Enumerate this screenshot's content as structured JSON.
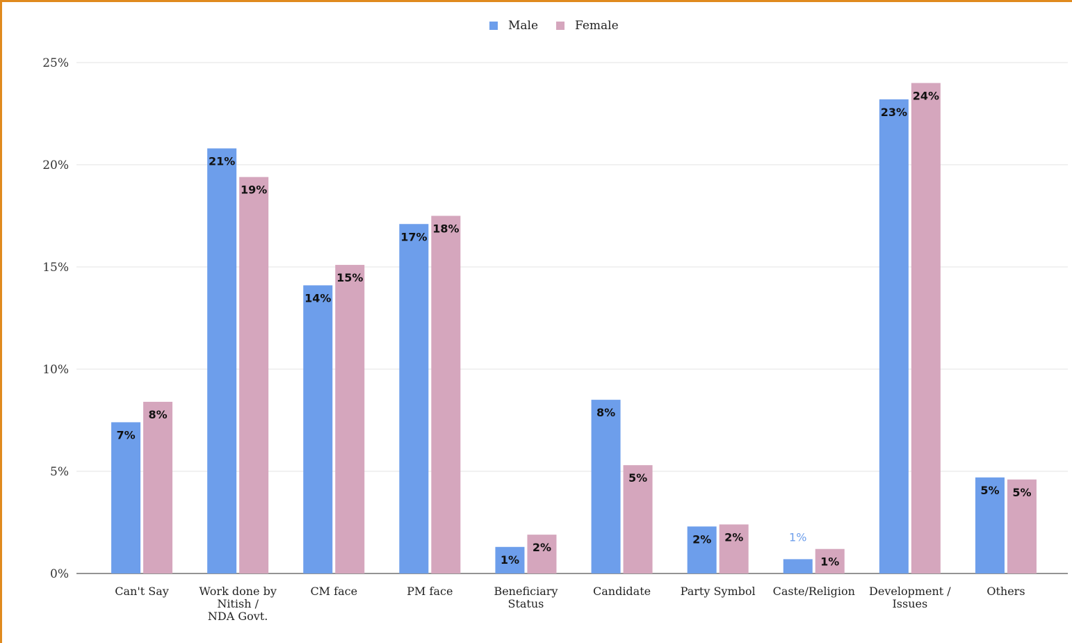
{
  "chart_data": {
    "type": "bar",
    "title": "",
    "xlabel": "",
    "ylabel": "",
    "ylim": [
      0,
      25
    ],
    "y_ticks": [
      "0%",
      "5%",
      "10%",
      "15%",
      "20%",
      "25%"
    ],
    "grid": true,
    "legend_position": "top-center",
    "categories": [
      [
        "Can't Say"
      ],
      [
        "Work done by",
        "Nitish /",
        "NDA Govt."
      ],
      [
        "CM face"
      ],
      [
        "PM face"
      ],
      [
        "Beneficiary",
        "Status"
      ],
      [
        "Candidate"
      ],
      [
        "Party Symbol"
      ],
      [
        "Caste/Religion"
      ],
      [
        "Development /",
        "Issues"
      ],
      [
        "Others"
      ]
    ],
    "series": [
      {
        "name": "Male",
        "color": "#6d9eeb",
        "values": [
          7.4,
          20.8,
          14.1,
          17.1,
          1.3,
          8.5,
          2.3,
          0.7,
          23.2,
          4.7
        ],
        "labels": [
          "7%",
          "21%",
          "14%",
          "17%",
          "1%",
          "8%",
          "2%",
          "1%",
          "23%",
          "5%"
        ]
      },
      {
        "name": "Female",
        "color": "#d5a6bd",
        "values": [
          8.4,
          19.4,
          15.1,
          17.5,
          1.9,
          5.3,
          2.4,
          1.2,
          24.0,
          4.6
        ],
        "labels": [
          "8%",
          "19%",
          "15%",
          "18%",
          "2%",
          "5%",
          "2%",
          "1%",
          "24%",
          "5%"
        ]
      }
    ]
  }
}
